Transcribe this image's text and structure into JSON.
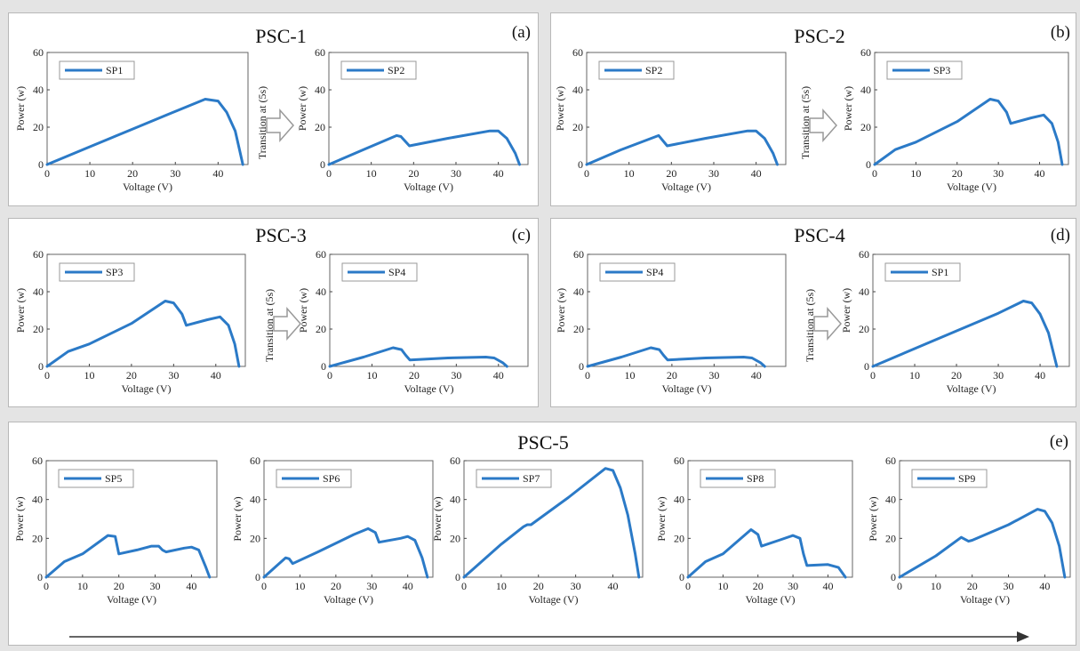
{
  "colors": {
    "line": "#2b7ac7",
    "axis": "#444444",
    "box": "#666666",
    "arrow_fill": "#ffffff",
    "arrow_stroke": "#999999"
  },
  "transition_text": "Transition at (5s)",
  "panels": [
    {
      "id": "a",
      "title": "PSC-1",
      "label": "(a)"
    },
    {
      "id": "b",
      "title": "PSC-2",
      "label": "(b)"
    },
    {
      "id": "c",
      "title": "PSC-3",
      "label": "(c)"
    },
    {
      "id": "d",
      "title": "PSC-4",
      "label": "(d)"
    },
    {
      "id": "e",
      "title": "PSC-5",
      "label": "(e)"
    }
  ],
  "chart_data": [
    {
      "type": "line",
      "panel": "a",
      "series": [
        {
          "name": "SP1",
          "x": [
            0,
            10,
            20,
            30,
            37,
            40,
            42,
            44,
            45,
            45.8
          ],
          "y": [
            0,
            9.5,
            19,
            28.5,
            35,
            34,
            28,
            18,
            8,
            0
          ]
        }
      ],
      "xlabel": "Voltage (V)",
      "ylabel": "Power (w)",
      "xlim": [
        0,
        47
      ],
      "ylim": [
        0,
        60
      ],
      "xticks": [
        0,
        10,
        20,
        30,
        40
      ],
      "yticks": [
        0,
        20,
        40,
        60
      ]
    },
    {
      "type": "line",
      "panel": "a",
      "series": [
        {
          "name": "SP2",
          "x": [
            0,
            8,
            16,
            17,
            19,
            28,
            38,
            40,
            42,
            44,
            45
          ],
          "y": [
            0,
            7.8,
            15.5,
            15,
            10,
            14,
            18,
            18,
            14,
            6,
            0
          ]
        }
      ],
      "xlabel": "Voltage (V)",
      "ylabel": "Power (w)",
      "xlim": [
        0,
        47
      ],
      "ylim": [
        0,
        60
      ],
      "xticks": [
        0,
        10,
        20,
        30,
        40
      ],
      "yticks": [
        0,
        20,
        40,
        60
      ]
    },
    {
      "type": "line",
      "panel": "b",
      "series": [
        {
          "name": "SP2",
          "x": [
            0,
            8,
            17,
            19,
            28,
            38,
            40,
            42,
            44,
            45
          ],
          "y": [
            0,
            7.8,
            15.5,
            10,
            14,
            18,
            18,
            14,
            6,
            0
          ]
        }
      ],
      "xlabel": "Voltage (V)",
      "ylabel": "Power (w)",
      "xlim": [
        0,
        47
      ],
      "ylim": [
        0,
        60
      ],
      "xticks": [
        0,
        10,
        20,
        30,
        40
      ],
      "yticks": [
        0,
        20,
        40,
        60
      ]
    },
    {
      "type": "line",
      "panel": "b",
      "series": [
        {
          "name": "SP3",
          "x": [
            0,
            5,
            10,
            20,
            28,
            30,
            32,
            33,
            38,
            41,
            43,
            44.5,
            45.5
          ],
          "y": [
            0,
            8,
            12,
            23,
            35,
            34,
            28,
            22,
            25,
            26.5,
            22,
            12,
            0
          ]
        }
      ],
      "xlabel": "Voltage (V)",
      "ylabel": "Power (w)",
      "xlim": [
        0,
        47
      ],
      "ylim": [
        0,
        60
      ],
      "xticks": [
        0,
        10,
        20,
        30,
        40
      ],
      "yticks": [
        0,
        20,
        40,
        60
      ]
    },
    {
      "type": "line",
      "panel": "c",
      "series": [
        {
          "name": "SP3",
          "x": [
            0,
            5,
            10,
            20,
            28,
            30,
            32,
            33,
            38,
            41,
            43,
            44.5,
            45.5
          ],
          "y": [
            0,
            8,
            12,
            23,
            35,
            34,
            28,
            22,
            25,
            26.5,
            22,
            12,
            0
          ]
        }
      ],
      "xlabel": "Voltage (V)",
      "ylabel": "Power (w)",
      "xlim": [
        0,
        47
      ],
      "ylim": [
        0,
        60
      ],
      "xticks": [
        0,
        10,
        20,
        30,
        40
      ],
      "yticks": [
        0,
        20,
        40,
        60
      ]
    },
    {
      "type": "line",
      "panel": "c",
      "series": [
        {
          "name": "SP4",
          "x": [
            0,
            8,
            15,
            17,
            18,
            19,
            28,
            37,
            39,
            41,
            42
          ],
          "y": [
            0,
            5,
            10,
            9,
            6,
            3.5,
            4.5,
            5,
            4.5,
            2,
            0
          ]
        }
      ],
      "xlabel": "Voltage (V)",
      "ylabel": "Power (w)",
      "xlim": [
        0,
        47
      ],
      "ylim": [
        0,
        60
      ],
      "xticks": [
        0,
        10,
        20,
        30,
        40
      ],
      "yticks": [
        0,
        20,
        40,
        60
      ]
    },
    {
      "type": "line",
      "panel": "d",
      "series": [
        {
          "name": "SP4",
          "x": [
            0,
            8,
            15,
            17,
            18,
            19,
            28,
            37,
            39,
            41,
            42
          ],
          "y": [
            0,
            5,
            10,
            9,
            6,
            3.5,
            4.5,
            5,
            4.5,
            2,
            0
          ]
        }
      ],
      "xlabel": "Voltage (V)",
      "ylabel": "Power (w)",
      "xlim": [
        0,
        47
      ],
      "ylim": [
        0,
        60
      ],
      "xticks": [
        0,
        10,
        20,
        30,
        40
      ],
      "yticks": [
        0,
        20,
        40,
        60
      ]
    },
    {
      "type": "line",
      "panel": "d",
      "series": [
        {
          "name": "SP1",
          "x": [
            0,
            10,
            20,
            30,
            36,
            38,
            40,
            42,
            43,
            44
          ],
          "y": [
            0,
            9.5,
            19,
            28.5,
            35,
            34,
            28,
            18,
            9,
            0
          ]
        }
      ],
      "xlabel": "Voltage (V)",
      "ylabel": "Power (w)",
      "xlim": [
        0,
        47
      ],
      "ylim": [
        0,
        60
      ],
      "xticks": [
        0,
        10,
        20,
        30,
        40
      ],
      "yticks": [
        0,
        20,
        40,
        60
      ]
    },
    {
      "type": "line",
      "panel": "e",
      "series": [
        {
          "name": "SP5",
          "x": [
            0,
            5,
            10,
            17,
            19,
            20,
            25,
            29,
            31,
            32,
            33,
            38,
            40,
            42,
            44,
            45
          ],
          "y": [
            0,
            8,
            12,
            21.5,
            21,
            12,
            14,
            16,
            16,
            14,
            13,
            15,
            15.5,
            14,
            5,
            0
          ]
        }
      ],
      "xlabel": "Voltage (V)",
      "ylabel": "Power (w)",
      "xlim": [
        0,
        47
      ],
      "ylim": [
        0,
        60
      ],
      "xticks": [
        0,
        10,
        20,
        30,
        40
      ],
      "yticks": [
        0,
        20,
        40,
        60
      ]
    },
    {
      "type": "line",
      "panel": "e",
      "series": [
        {
          "name": "SP6",
          "x": [
            0,
            3,
            6,
            7,
            8,
            15,
            25,
            29,
            31,
            32,
            38,
            40,
            42,
            44,
            45.5
          ],
          "y": [
            0,
            5,
            10,
            9.5,
            7,
            13,
            22,
            25,
            23,
            18,
            20,
            21,
            19,
            10,
            0
          ]
        }
      ],
      "xlabel": "Voltage (V)",
      "ylabel": "Power (w)",
      "xlim": [
        0,
        47
      ],
      "ylim": [
        0,
        60
      ],
      "xticks": [
        0,
        10,
        20,
        30,
        40
      ],
      "yticks": [
        0,
        20,
        40,
        60
      ]
    },
    {
      "type": "line",
      "panel": "e",
      "series": [
        {
          "name": "SP7",
          "x": [
            0,
            10,
            16,
            17,
            18,
            28,
            38,
            40,
            42,
            44,
            46,
            47
          ],
          "y": [
            0,
            17,
            26,
            27,
            27,
            41,
            56,
            55,
            46,
            32,
            12,
            0
          ]
        }
      ],
      "xlabel": "Voltage (V)",
      "ylabel": "Power (w)",
      "xlim": [
        0,
        48
      ],
      "ylim": [
        0,
        60
      ],
      "xticks": [
        0,
        10,
        20,
        30,
        40
      ],
      "yticks": [
        0,
        20,
        40,
        60
      ]
    },
    {
      "type": "line",
      "panel": "e",
      "series": [
        {
          "name": "SP8",
          "x": [
            0,
            5,
            10,
            18,
            20,
            21,
            26,
            30,
            32,
            33,
            34,
            40,
            43,
            45
          ],
          "y": [
            0,
            8,
            12,
            24.5,
            22,
            16,
            19,
            21.5,
            20,
            12,
            6,
            6.5,
            5,
            0
          ]
        }
      ],
      "xlabel": "Voltage (V)",
      "ylabel": "Power (w)",
      "xlim": [
        0,
        47
      ],
      "ylim": [
        0,
        60
      ],
      "xticks": [
        0,
        10,
        20,
        30,
        40
      ],
      "yticks": [
        0,
        20,
        40,
        60
      ]
    },
    {
      "type": "line",
      "panel": "e",
      "series": [
        {
          "name": "SP9",
          "x": [
            0,
            10,
            17,
            19,
            20,
            30,
            38,
            40,
            42,
            44,
            45.5
          ],
          "y": [
            0,
            11,
            20.5,
            18.5,
            19,
            27,
            35,
            34,
            28,
            16,
            0
          ]
        }
      ],
      "xlabel": "Voltage (V)",
      "ylabel": "Power (w)",
      "xlim": [
        0,
        47
      ],
      "ylim": [
        0,
        60
      ],
      "xticks": [
        0,
        10,
        20,
        30,
        40
      ],
      "yticks": [
        0,
        20,
        40,
        60
      ]
    }
  ]
}
